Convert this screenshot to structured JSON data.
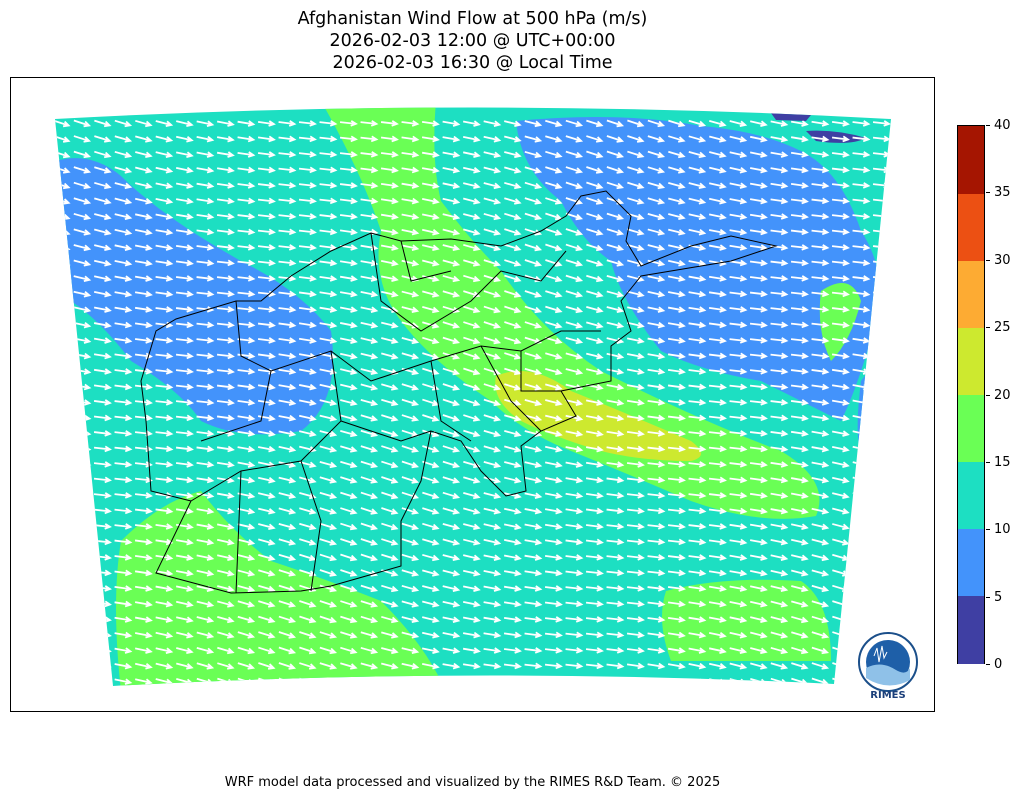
{
  "title": {
    "line1": "Afghanistan Wind Flow at 500 hPa (m/s)",
    "line2": "2026-02-03 12:00 @ UTC+00:00",
    "line3": "2026-02-03 16:30 @ Local Time"
  },
  "colorbar": {
    "ticks": [
      "0",
      "5",
      "10",
      "15",
      "20",
      "25",
      "30",
      "35",
      "40"
    ],
    "bins": [
      {
        "range": [
          0,
          5
        ],
        "color": "#3f3fa3"
      },
      {
        "range": [
          5,
          10
        ],
        "color": "#4393fb"
      },
      {
        "range": [
          10,
          15
        ],
        "color": "#1ddfc2"
      },
      {
        "range": [
          15,
          20
        ],
        "color": "#6aff55"
      },
      {
        "range": [
          20,
          25
        ],
        "color": "#cde92f"
      },
      {
        "range": [
          25,
          30
        ],
        "color": "#fdab33"
      },
      {
        "range": [
          30,
          35
        ],
        "color": "#ec5013"
      },
      {
        "range": [
          35,
          40
        ],
        "color": "#a51501"
      }
    ]
  },
  "map": {
    "field": "wind speed (m/s) at 500 hPa",
    "vectors": "wind direction arrows, predominantly westerly to west-northwesterly flow",
    "arrow_color": "#ffffff",
    "boundary_color": "#000000"
  },
  "logo": {
    "text": "RIMES"
  },
  "footer": "WRF model data processed and visualized by the RIMES R&D Team. © 2025"
}
